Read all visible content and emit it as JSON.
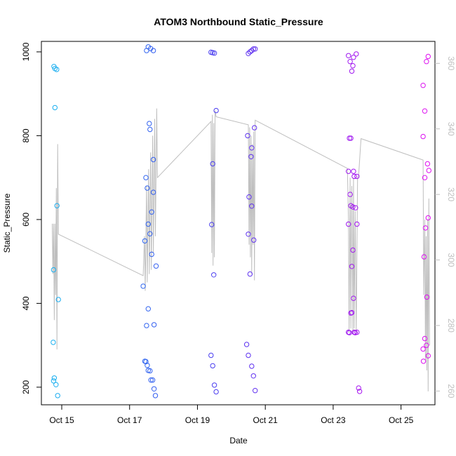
{
  "chart_data": {
    "type": "scatter",
    "title": "ATOM3 Northbound Static_Pressure",
    "xlabel": "Date",
    "ylabel": "Static_Pressure",
    "x_ticks": [
      "Oct 15",
      "Oct 17",
      "Oct 19",
      "Oct 21",
      "Oct 23",
      "Oct 25"
    ],
    "x_tick_values": [
      15,
      17,
      19,
      21,
      23,
      25
    ],
    "xlim": [
      14.4,
      26.0
    ],
    "y_ticks": [
      200,
      400,
      600,
      800,
      1000
    ],
    "ylim": [
      158,
      1025
    ],
    "y2_ticks": [
      260,
      280,
      300,
      320,
      340,
      360
    ],
    "y2lim": [
      255.8,
      366.7
    ],
    "grid": false,
    "point_series_color_gradient": [
      "#1AB0F0",
      "#3A4CF0",
      "#7A1EF0",
      "#E010F0"
    ],
    "line_color": "#BEBEBE",
    "points": [
      [
        14.77,
        965
      ],
      [
        14.8,
        960
      ],
      [
        14.85,
        958
      ],
      [
        14.8,
        867
      ],
      [
        14.86,
        633
      ],
      [
        14.76,
        480
      ],
      [
        14.9,
        409
      ],
      [
        14.75,
        307
      ],
      [
        14.78,
        222
      ],
      [
        14.76,
        215
      ],
      [
        14.83,
        206
      ],
      [
        14.88,
        180
      ],
      [
        17.55,
        1012
      ],
      [
        17.5,
        1003
      ],
      [
        17.62,
        1008
      ],
      [
        17.7,
        1003
      ],
      [
        17.58,
        829
      ],
      [
        17.6,
        815
      ],
      [
        17.7,
        743
      ],
      [
        17.48,
        700
      ],
      [
        17.52,
        675
      ],
      [
        17.7,
        665
      ],
      [
        17.65,
        618
      ],
      [
        17.55,
        589
      ],
      [
        17.6,
        566
      ],
      [
        17.45,
        549
      ],
      [
        17.65,
        517
      ],
      [
        17.78,
        489
      ],
      [
        17.4,
        441
      ],
      [
        17.55,
        387
      ],
      [
        17.72,
        349
      ],
      [
        17.5,
        347
      ],
      [
        17.45,
        262
      ],
      [
        17.48,
        261
      ],
      [
        17.52,
        252
      ],
      [
        17.55,
        240
      ],
      [
        17.6,
        239
      ],
      [
        17.63,
        217
      ],
      [
        17.68,
        217
      ],
      [
        17.72,
        196
      ],
      [
        17.76,
        180
      ],
      [
        19.4,
        999
      ],
      [
        19.45,
        998
      ],
      [
        19.5,
        997
      ],
      [
        19.55,
        860
      ],
      [
        19.45,
        733
      ],
      [
        19.42,
        588
      ],
      [
        19.48,
        468
      ],
      [
        19.4,
        276
      ],
      [
        19.45,
        251
      ],
      [
        19.5,
        205
      ],
      [
        19.55,
        189
      ],
      [
        20.5,
        996
      ],
      [
        20.55,
        1000
      ],
      [
        20.6,
        1003
      ],
      [
        20.65,
        1007
      ],
      [
        20.7,
        1007
      ],
      [
        20.68,
        819
      ],
      [
        20.48,
        800
      ],
      [
        20.6,
        771
      ],
      [
        20.58,
        750
      ],
      [
        20.52,
        654
      ],
      [
        20.6,
        632
      ],
      [
        20.66,
        551
      ],
      [
        20.5,
        565
      ],
      [
        20.55,
        470
      ],
      [
        20.45,
        302
      ],
      [
        20.5,
        276
      ],
      [
        20.6,
        250
      ],
      [
        20.65,
        227
      ],
      [
        20.7,
        192
      ],
      [
        23.45,
        991
      ],
      [
        23.5,
        977
      ],
      [
        23.6,
        987
      ],
      [
        23.68,
        995
      ],
      [
        23.58,
        967
      ],
      [
        23.55,
        954
      ],
      [
        23.48,
        794
      ],
      [
        23.52,
        794
      ],
      [
        23.45,
        715
      ],
      [
        23.6,
        715
      ],
      [
        23.62,
        703
      ],
      [
        23.7,
        703
      ],
      [
        23.5,
        660
      ],
      [
        23.52,
        633
      ],
      [
        23.58,
        630
      ],
      [
        23.66,
        628
      ],
      [
        23.45,
        589
      ],
      [
        23.7,
        589
      ],
      [
        23.58,
        527
      ],
      [
        23.55,
        488
      ],
      [
        23.6,
        412
      ],
      [
        23.55,
        378
      ],
      [
        23.52,
        377
      ],
      [
        23.45,
        331
      ],
      [
        23.48,
        330
      ],
      [
        23.62,
        331
      ],
      [
        23.65,
        330
      ],
      [
        23.7,
        331
      ],
      [
        23.75,
        198
      ],
      [
        23.78,
        190
      ],
      [
        25.8,
        989
      ],
      [
        25.75,
        977
      ],
      [
        25.65,
        920
      ],
      [
        25.7,
        859
      ],
      [
        25.65,
        798
      ],
      [
        25.78,
        733
      ],
      [
        25.82,
        717
      ],
      [
        25.7,
        700
      ],
      [
        25.8,
        604
      ],
      [
        25.72,
        580
      ],
      [
        25.68,
        511
      ],
      [
        25.76,
        415
      ],
      [
        25.7,
        316
      ],
      [
        25.75,
        300
      ],
      [
        25.65,
        291
      ],
      [
        25.8,
        275
      ],
      [
        25.66,
        262
      ]
    ],
    "line_polyline": [
      [
        14.72,
        590
      ],
      [
        14.74,
        470
      ],
      [
        14.76,
        590
      ],
      [
        14.78,
        360
      ],
      [
        14.8,
        590
      ],
      [
        14.82,
        420
      ],
      [
        14.84,
        675
      ],
      [
        14.86,
        290
      ],
      [
        14.88,
        780
      ],
      [
        14.9,
        565
      ],
      [
        17.4,
        466
      ],
      [
        17.44,
        560
      ],
      [
        17.46,
        430
      ],
      [
        17.5,
        680
      ],
      [
        17.52,
        450
      ],
      [
        17.56,
        720
      ],
      [
        17.58,
        470
      ],
      [
        17.62,
        760
      ],
      [
        17.64,
        480
      ],
      [
        17.68,
        800
      ],
      [
        17.7,
        520
      ],
      [
        17.74,
        840
      ],
      [
        17.76,
        560
      ],
      [
        17.8,
        865
      ],
      [
        17.82,
        700
      ],
      [
        19.4,
        834
      ],
      [
        19.42,
        520
      ],
      [
        19.44,
        850
      ],
      [
        19.46,
        490
      ],
      [
        19.48,
        830
      ],
      [
        19.5,
        510
      ],
      [
        19.52,
        860
      ],
      [
        19.55,
        845
      ],
      [
        20.5,
        826
      ],
      [
        20.52,
        540
      ],
      [
        20.54,
        820
      ],
      [
        20.56,
        510
      ],
      [
        20.58,
        800
      ],
      [
        20.6,
        470
      ],
      [
        20.62,
        780
      ],
      [
        20.64,
        540
      ],
      [
        20.66,
        810
      ],
      [
        20.68,
        455
      ],
      [
        20.7,
        837
      ],
      [
        23.42,
        722
      ],
      [
        23.45,
        600
      ],
      [
        23.47,
        330
      ],
      [
        23.5,
        700
      ],
      [
        23.52,
        340
      ],
      [
        23.55,
        680
      ],
      [
        23.58,
        330
      ],
      [
        23.6,
        700
      ],
      [
        23.62,
        340
      ],
      [
        23.65,
        620
      ],
      [
        23.68,
        330
      ],
      [
        23.72,
        700
      ],
      [
        23.75,
        705
      ],
      [
        23.82,
        793
      ],
      [
        25.65,
        742
      ],
      [
        25.67,
        420
      ],
      [
        25.7,
        600
      ],
      [
        25.72,
        260
      ],
      [
        25.74,
        560
      ],
      [
        25.76,
        240
      ],
      [
        25.78,
        600
      ],
      [
        25.8,
        190
      ],
      [
        25.82,
        650
      ],
      [
        25.84,
        300
      ]
    ]
  }
}
